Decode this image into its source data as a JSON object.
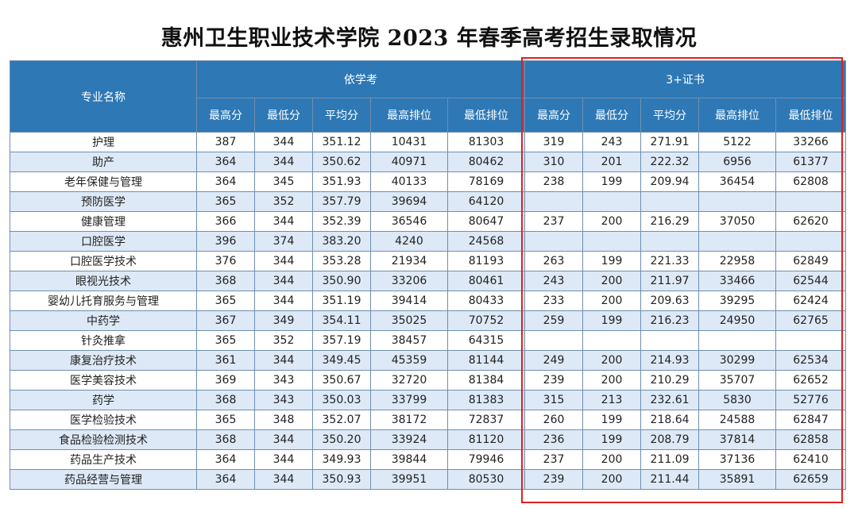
{
  "title": "惠州卫生职业技术学院 2023 年春季高考招生录取情况",
  "table": {
    "major_header": "专业名称",
    "group_a": "依学考",
    "group_b": "3+证书",
    "sub_headers": [
      "最高分",
      "最低分",
      "平均分",
      "最高排位",
      "最低排位"
    ],
    "rows": [
      {
        "name": "护理",
        "a": [
          "387",
          "344",
          "351.12",
          "10431",
          "81303"
        ],
        "b": [
          "319",
          "243",
          "271.91",
          "5122",
          "33266"
        ]
      },
      {
        "name": "助产",
        "a": [
          "364",
          "344",
          "350.62",
          "40971",
          "80462"
        ],
        "b": [
          "310",
          "201",
          "222.32",
          "6956",
          "61377"
        ]
      },
      {
        "name": "老年保健与管理",
        "a": [
          "364",
          "345",
          "351.93",
          "40133",
          "78169"
        ],
        "b": [
          "238",
          "199",
          "209.94",
          "36454",
          "62808"
        ]
      },
      {
        "name": "预防医学",
        "a": [
          "365",
          "352",
          "357.79",
          "39694",
          "64120"
        ],
        "b": [
          "",
          "",
          "",
          "",
          ""
        ]
      },
      {
        "name": "健康管理",
        "a": [
          "366",
          "344",
          "352.39",
          "36546",
          "80647"
        ],
        "b": [
          "237",
          "200",
          "216.29",
          "37050",
          "62620"
        ]
      },
      {
        "name": "口腔医学",
        "a": [
          "396",
          "374",
          "383.20",
          "4240",
          "24568"
        ],
        "b": [
          "",
          "",
          "",
          "",
          ""
        ]
      },
      {
        "name": "口腔医学技术",
        "a": [
          "376",
          "344",
          "353.28",
          "21934",
          "81193"
        ],
        "b": [
          "263",
          "199",
          "221.33",
          "22958",
          "62849"
        ]
      },
      {
        "name": "眼视光技术",
        "a": [
          "368",
          "344",
          "350.90",
          "33206",
          "80461"
        ],
        "b": [
          "243",
          "200",
          "211.97",
          "33466",
          "62544"
        ]
      },
      {
        "name": "婴幼儿托育服务与管理",
        "a": [
          "365",
          "344",
          "351.19",
          "39414",
          "80433"
        ],
        "b": [
          "233",
          "200",
          "209.63",
          "39295",
          "62424"
        ]
      },
      {
        "name": "中药学",
        "a": [
          "367",
          "349",
          "354.11",
          "35025",
          "70752"
        ],
        "b": [
          "259",
          "199",
          "216.23",
          "24950",
          "62765"
        ]
      },
      {
        "name": "针灸推拿",
        "a": [
          "365",
          "352",
          "357.19",
          "38457",
          "64315"
        ],
        "b": [
          "",
          "",
          "",
          "",
          ""
        ]
      },
      {
        "name": "康复治疗技术",
        "a": [
          "361",
          "344",
          "349.45",
          "45359",
          "81144"
        ],
        "b": [
          "249",
          "200",
          "214.93",
          "30299",
          "62534"
        ]
      },
      {
        "name": "医学美容技术",
        "a": [
          "369",
          "343",
          "350.67",
          "32720",
          "81384"
        ],
        "b": [
          "239",
          "200",
          "210.29",
          "35707",
          "62652"
        ]
      },
      {
        "name": "药学",
        "a": [
          "368",
          "343",
          "350.03",
          "33799",
          "81383"
        ],
        "b": [
          "315",
          "213",
          "232.61",
          "5830",
          "52776"
        ]
      },
      {
        "name": "医学检验技术",
        "a": [
          "365",
          "348",
          "352.07",
          "38172",
          "72837"
        ],
        "b": [
          "260",
          "199",
          "218.64",
          "24588",
          "62847"
        ]
      },
      {
        "name": "食品检验检测技术",
        "a": [
          "368",
          "344",
          "350.20",
          "33924",
          "81120"
        ],
        "b": [
          "236",
          "199",
          "208.79",
          "37814",
          "62858"
        ]
      },
      {
        "name": "药品生产技术",
        "a": [
          "364",
          "344",
          "349.93",
          "39844",
          "79946"
        ],
        "b": [
          "237",
          "200",
          "211.09",
          "37136",
          "62410"
        ]
      },
      {
        "name": "药品经营与管理",
        "a": [
          "364",
          "344",
          "350.93",
          "39951",
          "80530"
        ],
        "b": [
          "239",
          "200",
          "211.44",
          "35891",
          "62659"
        ]
      }
    ]
  },
  "colors": {
    "header_bg": "#2e78b5",
    "stripe_bg": "#dde9f6",
    "highlight_border": "#e02020"
  }
}
